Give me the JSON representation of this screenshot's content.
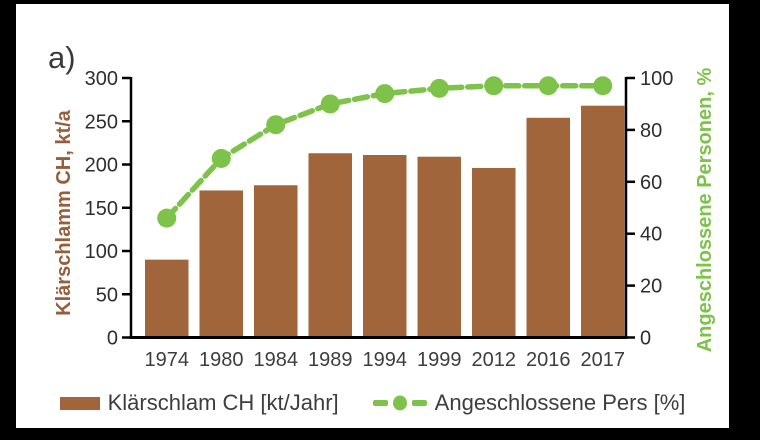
{
  "figure_label": "a)",
  "colors": {
    "bar_brown": "#a0653a",
    "axis_title_brown": "#965f3c",
    "line_green": "#7dc249",
    "text_dark": "#3d3d3d",
    "axis_black": "#000000",
    "frame_black": "#000000",
    "background": "#ffffff"
  },
  "chart_data": {
    "type": "combo-bar-line",
    "title": "",
    "categories": [
      "1974",
      "1980",
      "1984",
      "1989",
      "1994",
      "1999",
      "2012",
      "2016",
      "2017"
    ],
    "series": [
      {
        "name": "Klärschlam CH [kt/Jahr]",
        "type": "bar",
        "axis": "left",
        "color": "#a0653a",
        "values": [
          90,
          170,
          176,
          213,
          211,
          209,
          196,
          254,
          268
        ]
      },
      {
        "name": "Angeschlossene Pers [%]",
        "type": "line-dashed-with-dots",
        "axis": "right",
        "color": "#7dc249",
        "values": [
          46,
          69,
          82,
          90,
          94,
          96,
          97,
          97,
          97
        ]
      }
    ],
    "left_axis": {
      "label": "Klärschlamm CH, kt/a",
      "min": 0,
      "max": 300,
      "step": 50,
      "ticks": [
        0,
        50,
        100,
        150,
        200,
        250,
        300
      ]
    },
    "right_axis": {
      "label": "Angeschlossene Personen, %",
      "min": 0,
      "max": 100,
      "step": 20,
      "ticks": [
        0,
        20,
        40,
        60,
        80,
        100
      ]
    },
    "grid": false,
    "legend_position": "bottom"
  }
}
